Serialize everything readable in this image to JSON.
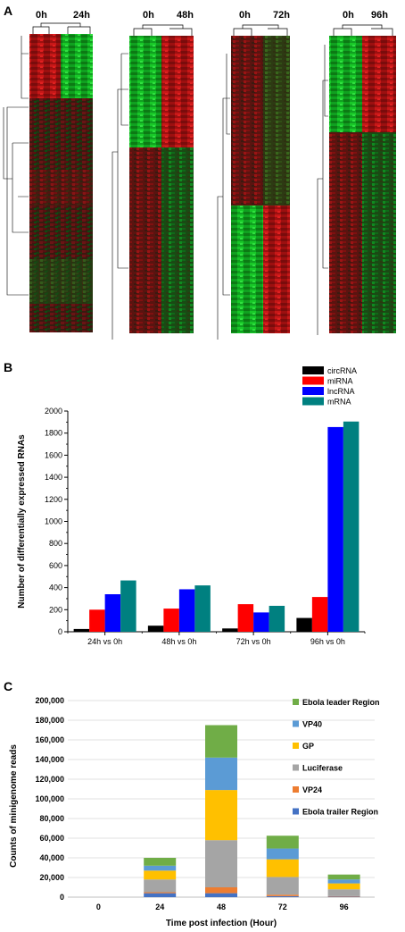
{
  "panel_a": {
    "label": "A",
    "heatmaps": [
      {
        "left": "0h",
        "right": "24h"
      },
      {
        "left": "0h",
        "right": "48h"
      },
      {
        "left": "0h",
        "right": "72h"
      },
      {
        "left": "0h",
        "right": "96h"
      }
    ]
  },
  "chart_data": [
    {
      "panel": "B",
      "type": "bar",
      "categories": [
        "24h vs 0h",
        "48h vs 0h",
        "72h vs 0h",
        "96h vs 0h"
      ],
      "series": [
        {
          "name": "circRNA",
          "color": "#000000",
          "values": [
            25,
            55,
            30,
            125
          ]
        },
        {
          "name": "miRNA",
          "color": "#ff0000",
          "values": [
            200,
            210,
            250,
            315
          ]
        },
        {
          "name": "lncRNA",
          "color": "#0000ff",
          "values": [
            340,
            385,
            175,
            1855
          ]
        },
        {
          "name": "mRNA",
          "color": "#008080",
          "values": [
            465,
            420,
            235,
            1905
          ]
        }
      ],
      "xlabel": "",
      "ylabel": "Number of differentially expressed RNAs",
      "ylim": [
        0,
        2000
      ],
      "yticks": [
        "0",
        "200",
        "400",
        "600",
        "800",
        "1000",
        "1200",
        "1400",
        "1600",
        "1800",
        "2000"
      ],
      "legend": "top-right"
    },
    {
      "panel": "C",
      "type": "bar",
      "stacked": true,
      "categories": [
        "0",
        "24",
        "48",
        "72",
        "96"
      ],
      "series": [
        {
          "name": "Ebola trailer Region",
          "color": "#4472c4",
          "values": [
            0,
            4000,
            4000,
            1000,
            500
          ]
        },
        {
          "name": "VP24",
          "color": "#ed7d31",
          "values": [
            0,
            1000,
            6000,
            1500,
            500
          ]
        },
        {
          "name": "Luciferase",
          "color": "#a5a5a5",
          "values": [
            0,
            13000,
            48000,
            18000,
            7000
          ]
        },
        {
          "name": "GP",
          "color": "#ffc000",
          "values": [
            0,
            9000,
            51000,
            18000,
            6000
          ]
        },
        {
          "name": "VP40",
          "color": "#5b9bd5",
          "values": [
            0,
            5000,
            33000,
            11000,
            4000
          ]
        },
        {
          "name": "Ebola leader Region",
          "color": "#70ad47",
          "values": [
            0,
            8000,
            33000,
            13000,
            5000
          ]
        }
      ],
      "xlabel": "Time post infection (Hour)",
      "ylabel": "Counts of minigenome reads",
      "ylim": [
        0,
        200000
      ],
      "yticks": [
        "0",
        "20,000",
        "40,000",
        "60,000",
        "80,000",
        "100,000",
        "120,000",
        "140,000",
        "160,000",
        "180,000",
        "200,000"
      ],
      "legend": "top-right"
    }
  ],
  "panel_b_label": "B",
  "panel_c_label": "C"
}
